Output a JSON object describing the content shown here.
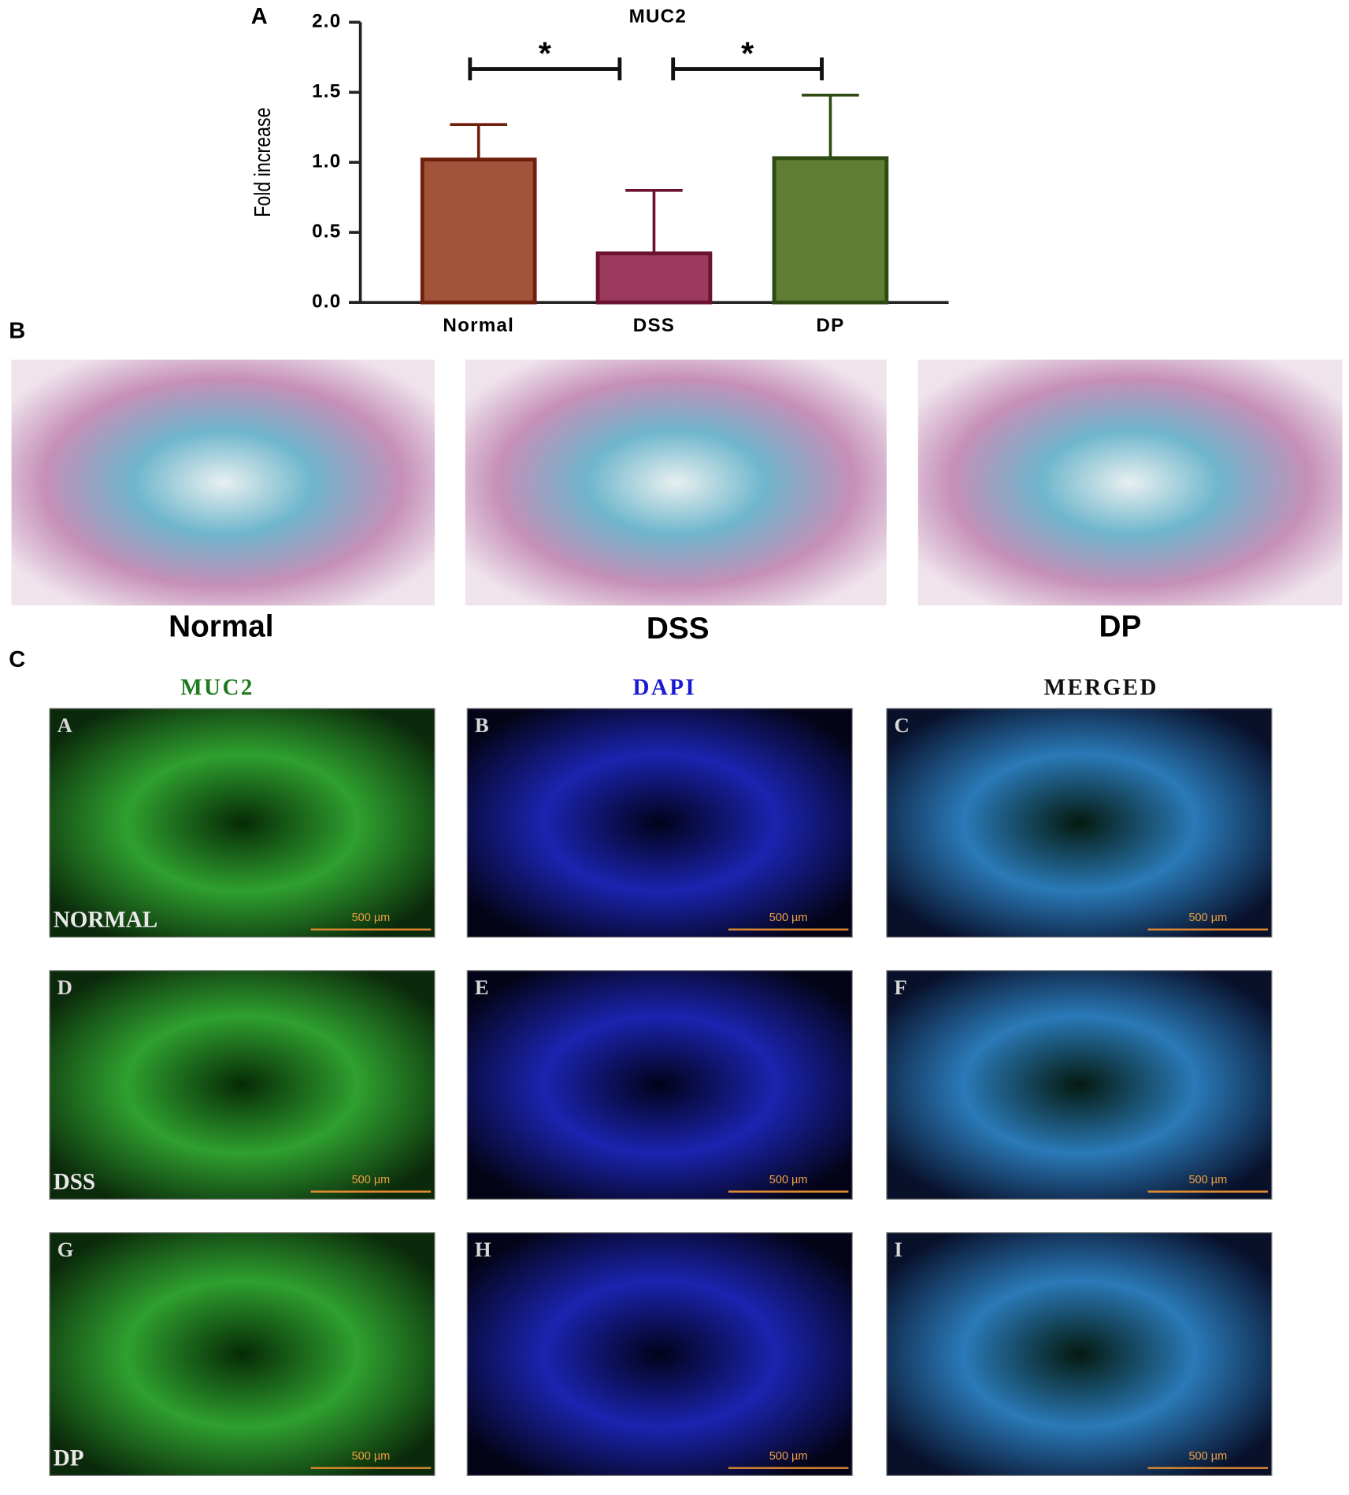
{
  "chart_data": {
    "type": "bar",
    "title": "MUC2",
    "ylabel": "Fold increase",
    "categories": [
      "Normal",
      "DSS",
      "DP"
    ],
    "values": [
      1.02,
      0.35,
      1.03
    ],
    "errors": [
      0.25,
      0.45,
      0.45
    ],
    "colors": [
      "#a2533a",
      "#9b3a5c",
      "#5f7d33"
    ],
    "edge_colors": [
      "#6e1f0e",
      "#6a1232",
      "#2f4a12"
    ],
    "ylim": [
      0,
      2
    ],
    "yticks": [
      {
        "value": 0,
        "label": "0.0"
      },
      0.5,
      {
        "value": 1,
        "label": "1.0"
      },
      1.5,
      {
        "value": 2,
        "label": "2.0"
      }
    ],
    "annotations": [
      "*",
      "*"
    ]
  },
  "panel_labels": [
    "A",
    "B",
    "C"
  ],
  "histology": {
    "labels": [
      "Normal",
      "DSS",
      "DP"
    ]
  },
  "fluorescence": {
    "columns": [
      "MUC2",
      "DAPI",
      "MERGED"
    ],
    "column_colors": [
      "#1f7a1f",
      "#1a1ad0",
      "#111111"
    ],
    "tiles": [
      "A",
      "B",
      "C",
      "D",
      "E",
      "F",
      "G",
      "H",
      "I"
    ],
    "rows": [
      "NORMAL",
      "DSS",
      "DP"
    ],
    "scale_bar": "500 µm"
  }
}
